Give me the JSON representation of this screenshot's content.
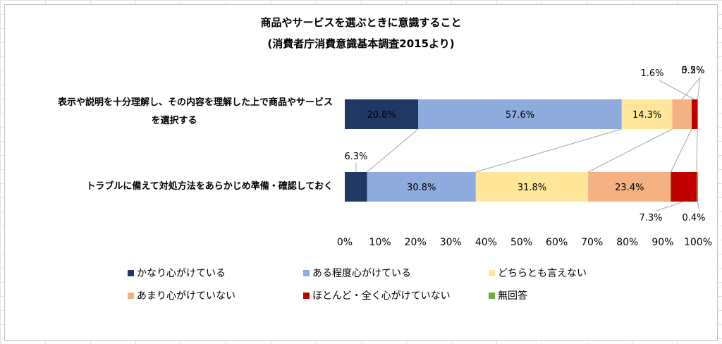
{
  "chart_data": {
    "type": "bar",
    "orientation": "horizontal",
    "stacked": "percent",
    "title": "商品やサービスを選ぶときに意識すること",
    "subtitle": "(消費者庁消費意識基本調査2015より)",
    "categories": [
      {
        "lines": [
          "表示や説明を十分理解し、その内容を理解した上で商品やサービス",
          "を選択する"
        ]
      },
      {
        "lines": [
          "トラブルに備えて対処方法をあらかじめ準備・確認しておく"
        ]
      }
    ],
    "series": [
      {
        "name": "かなり心がけている",
        "color": "#203864",
        "values": [
          20.8,
          6.3
        ],
        "labels": [
          "20.8%",
          "6.3%"
        ]
      },
      {
        "name": "ある程度心がけている",
        "color": "#8faadc",
        "values": [
          57.6,
          30.8
        ],
        "labels": [
          "57.6%",
          "30.8%"
        ]
      },
      {
        "name": "どちらとも言えない",
        "color": "#ffe699",
        "values": [
          14.3,
          31.8
        ],
        "labels": [
          "14.3%",
          "31.8%"
        ]
      },
      {
        "name": "あまり心がけていない",
        "color": "#f4b183",
        "values": [
          5.5,
          23.4
        ],
        "labels": [
          "5.5%",
          "23.4%"
        ]
      },
      {
        "name": "ほとんど・全く心がけていない",
        "color": "#c00000",
        "values": [
          1.6,
          7.3
        ],
        "labels": [
          "1.6%",
          "7.3%"
        ]
      },
      {
        "name": "無回答",
        "color": "#70ad47",
        "values": [
          0.2,
          0.4
        ],
        "labels": [
          "0.2%",
          "0.4%"
        ]
      }
    ],
    "xlim": [
      0,
      100
    ],
    "xticks": [
      "0%",
      "10%",
      "20%",
      "30%",
      "40%",
      "50%",
      "60%",
      "70%",
      "80%",
      "90%",
      "100%"
    ],
    "series_lines": true,
    "grid": false,
    "legend_position": "bottom"
  }
}
